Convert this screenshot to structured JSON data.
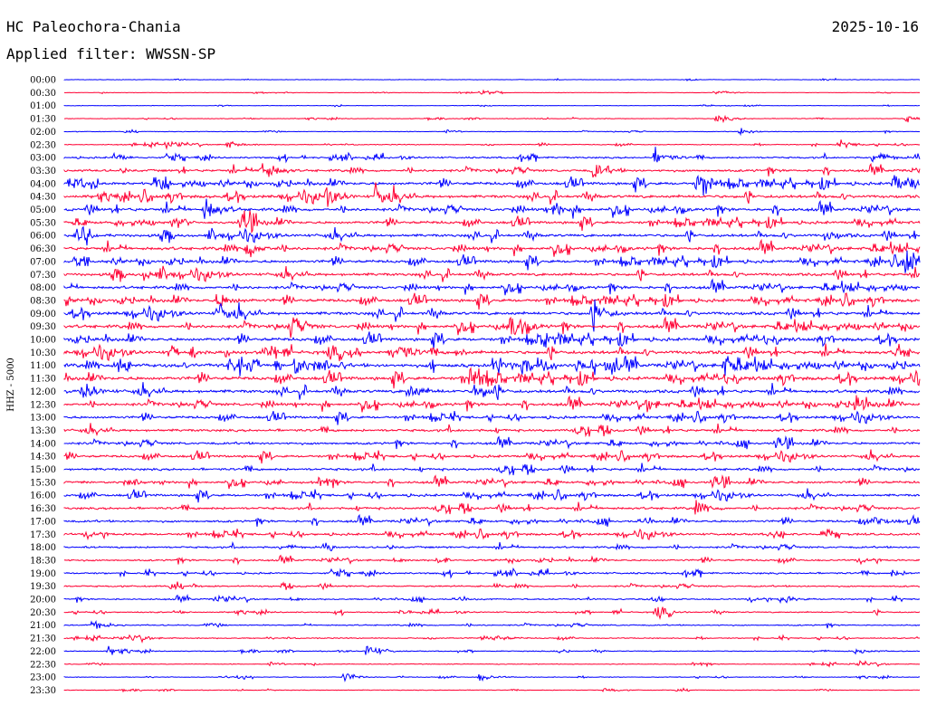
{
  "header": {
    "station": "HC Paleochora-Chania",
    "date": "2025-10-16",
    "filter": "Applied filter: WWSSN-SP"
  },
  "chart_data": {
    "type": "helicorder",
    "ylabel": "HHZ - 5000",
    "colors": [
      "#0000ff",
      "#ff0033"
    ],
    "rows": [
      "00:00",
      "00:30",
      "01:00",
      "01:30",
      "02:00",
      "02:30",
      "03:00",
      "03:30",
      "04:00",
      "04:30",
      "05:00",
      "05:30",
      "06:00",
      "06:30",
      "07:00",
      "07:30",
      "08:00",
      "08:30",
      "09:00",
      "09:30",
      "10:00",
      "10:30",
      "11:00",
      "11:30",
      "12:00",
      "12:30",
      "13:00",
      "13:30",
      "14:00",
      "14:30",
      "15:00",
      "15:30",
      "16:00",
      "16:30",
      "17:00",
      "17:30",
      "18:00",
      "18:30",
      "19:00",
      "19:30",
      "20:00",
      "20:30",
      "21:00",
      "21:30",
      "22:00",
      "22:30",
      "23:00",
      "23:30"
    ],
    "activity": [
      0.6,
      0.6,
      0.7,
      0.8,
      0.8,
      1.2,
      2.2,
      3.0,
      3.6,
      3.8,
      3.8,
      3.4,
      3.6,
      3.8,
      3.6,
      3.6,
      3.6,
      3.8,
      4.0,
      4.0,
      4.0,
      4.2,
      4.4,
      4.2,
      4.0,
      3.6,
      3.2,
      3.2,
      3.0,
      3.0,
      3.0,
      3.0,
      3.0,
      3.0,
      2.8,
      2.8,
      2.4,
      2.2,
      2.2,
      2.0,
      1.8,
      1.6,
      1.6,
      1.4,
      1.2,
      1.0,
      1.0,
      0.8
    ],
    "events": [
      {
        "row": 1,
        "x": 530,
        "amp": 5
      },
      {
        "row": 1,
        "x": 790,
        "amp": 4
      },
      {
        "row": 3,
        "x": 792,
        "amp": 8
      },
      {
        "row": 3,
        "x": 1000,
        "amp": 6
      },
      {
        "row": 4,
        "x": 818,
        "amp": 6
      },
      {
        "row": 5,
        "x": 184,
        "amp": 8
      },
      {
        "row": 5,
        "x": 250,
        "amp": 7
      },
      {
        "row": 5,
        "x": 930,
        "amp": 6
      },
      {
        "row": 6,
        "x": 126,
        "amp": 7
      },
      {
        "row": 6,
        "x": 724,
        "amp": 14
      },
      {
        "row": 6,
        "x": 965,
        "amp": 8
      },
      {
        "row": 7,
        "x": 288,
        "amp": 24
      },
      {
        "row": 7,
        "x": 655,
        "amp": 16
      },
      {
        "row": 8,
        "x": 770,
        "amp": 24
      },
      {
        "row": 8,
        "x": 985,
        "amp": 20
      },
      {
        "row": 9,
        "x": 360,
        "amp": 16
      },
      {
        "row": 9,
        "x": 415,
        "amp": 18
      },
      {
        "row": 10,
        "x": 226,
        "amp": 22
      },
      {
        "row": 10,
        "x": 612,
        "amp": 12
      },
      {
        "row": 11,
        "x": 270,
        "amp": 12
      },
      {
        "row": 12,
        "x": 85,
        "amp": 10
      },
      {
        "row": 12,
        "x": 912,
        "amp": 10
      },
      {
        "row": 13,
        "x": 272,
        "amp": 18
      },
      {
        "row": 14,
        "x": 1000,
        "amp": 26
      },
      {
        "row": 15,
        "x": 158,
        "amp": 10
      },
      {
        "row": 17,
        "x": 240,
        "amp": 14
      },
      {
        "row": 18,
        "x": 240,
        "amp": 16
      },
      {
        "row": 18,
        "x": 655,
        "amp": 20
      },
      {
        "row": 19,
        "x": 565,
        "amp": 24
      },
      {
        "row": 19,
        "x": 320,
        "amp": 14
      },
      {
        "row": 20,
        "x": 600,
        "amp": 14
      },
      {
        "row": 21,
        "x": 440,
        "amp": 18
      },
      {
        "row": 21,
        "x": 990,
        "amp": 14
      },
      {
        "row": 22,
        "x": 325,
        "amp": 20
      },
      {
        "row": 22,
        "x": 545,
        "amp": 16
      },
      {
        "row": 22,
        "x": 800,
        "amp": 18
      },
      {
        "row": 23,
        "x": 520,
        "amp": 22
      },
      {
        "row": 24,
        "x": 90,
        "amp": 16
      },
      {
        "row": 24,
        "x": 450,
        "amp": 16
      },
      {
        "row": 24,
        "x": 525,
        "amp": 18
      },
      {
        "row": 25,
        "x": 945,
        "amp": 14
      },
      {
        "row": 25,
        "x": 715,
        "amp": 10
      },
      {
        "row": 33,
        "x": 768,
        "amp": 10
      },
      {
        "row": 34,
        "x": 968,
        "amp": 8
      },
      {
        "row": 38,
        "x": 985,
        "amp": 6
      },
      {
        "row": 40,
        "x": 238,
        "amp": 7
      },
      {
        "row": 40,
        "x": 862,
        "amp": 8
      },
      {
        "row": 41,
        "x": 724,
        "amp": 8
      },
      {
        "row": 42,
        "x": 102,
        "amp": 8
      },
      {
        "row": 43,
        "x": 145,
        "amp": 7
      },
      {
        "row": 43,
        "x": 545,
        "amp": 7
      },
      {
        "row": 44,
        "x": 120,
        "amp": 7
      },
      {
        "row": 44,
        "x": 405,
        "amp": 14
      },
      {
        "row": 44,
        "x": 945,
        "amp": 5
      },
      {
        "row": 45,
        "x": 950,
        "amp": 5
      },
      {
        "row": 46,
        "x": 378,
        "amp": 9
      },
      {
        "row": 46,
        "x": 530,
        "amp": 7
      },
      {
        "row": 47,
        "x": 668,
        "amp": 4
      }
    ]
  }
}
